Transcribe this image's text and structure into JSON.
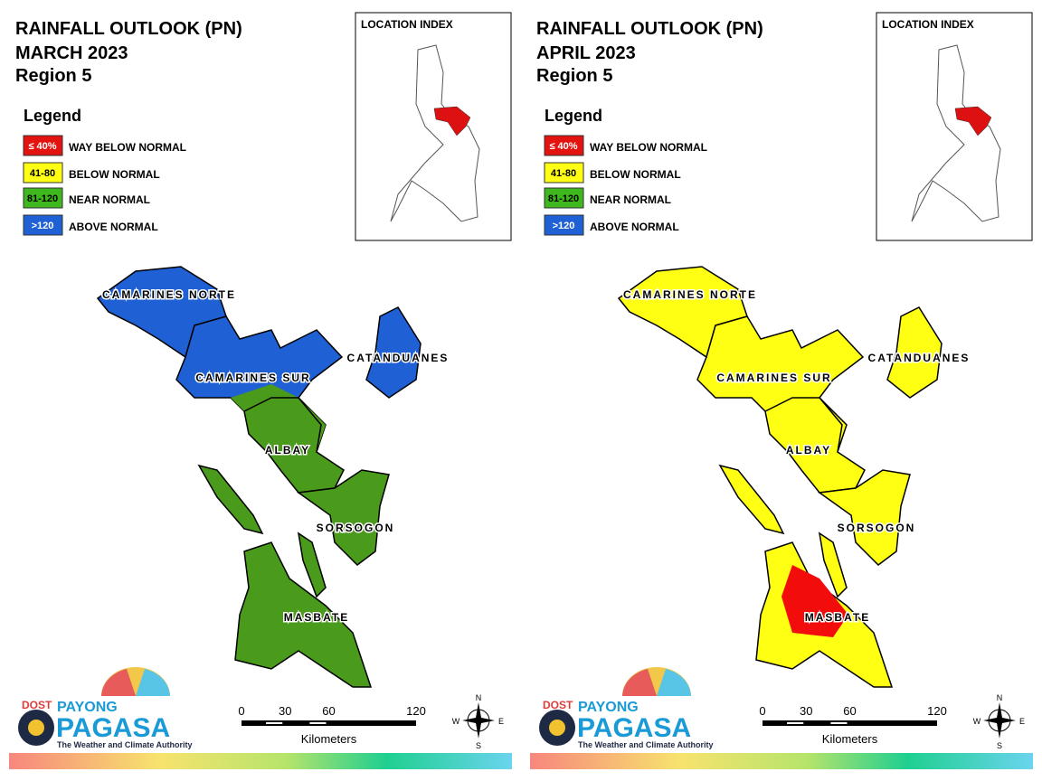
{
  "panels": [
    {
      "title": "RAINFALL OUTLOOK (PN)",
      "month": "MARCH 2023",
      "region": "Region 5",
      "location_index": "LOCATION INDEX",
      "legend": {
        "title": "Legend",
        "items": [
          {
            "range": "≤ 40%",
            "label": "WAY BELOW NORMAL",
            "color": "#e3140f"
          },
          {
            "range": "41-80",
            "label": "BELOW NORMAL",
            "color": "#ffff14"
          },
          {
            "range": "81-120",
            "label": "NEAR NORMAL",
            "color": "#3fb71e"
          },
          {
            "range": ">120",
            "label": "ABOVE NORMAL",
            "color": "#1f60d4"
          }
        ]
      },
      "provinces": [
        {
          "name": "CAMARINES NORTE",
          "color": "#1f60d4"
        },
        {
          "name": "CAMARINES SUR",
          "color": "#1f60d4",
          "accent": "#4a9a1c"
        },
        {
          "name": "CATANDUANES",
          "color": "#1f60d4"
        },
        {
          "name": "ALBAY",
          "color": "#4a9a1c"
        },
        {
          "name": "SORSOGON",
          "color": "#4a9a1c"
        },
        {
          "name": "MASBATE",
          "color": "#4a9a1c"
        }
      ],
      "scale": {
        "ticks": [
          0,
          30,
          60,
          120
        ],
        "unit": "Kilometers"
      }
    },
    {
      "title": "RAINFALL OUTLOOK (PN)",
      "month": "APRIL 2023",
      "region": "Region 5",
      "location_index": "LOCATION INDEX",
      "legend": {
        "title": "Legend",
        "items": [
          {
            "range": "≤ 40%",
            "label": "WAY BELOW NORMAL",
            "color": "#e3140f"
          },
          {
            "range": "41-80",
            "label": "BELOW NORMAL",
            "color": "#ffff14"
          },
          {
            "range": "81-120",
            "label": "NEAR NORMAL",
            "color": "#3fb71e"
          },
          {
            "range": ">120",
            "label": "ABOVE NORMAL",
            "color": "#1f60d4"
          }
        ]
      },
      "provinces": [
        {
          "name": "CAMARINES NORTE",
          "color": "#ffff14"
        },
        {
          "name": "CAMARINES SUR",
          "color": "#ffff14"
        },
        {
          "name": "CATANDUANES",
          "color": "#ffff14"
        },
        {
          "name": "ALBAY",
          "color": "#ffff14"
        },
        {
          "name": "SORSOGON",
          "color": "#ffff14"
        },
        {
          "name": "MASBATE",
          "color": "#ffff14",
          "accent": "#f20c0c"
        }
      ],
      "scale": {
        "ticks": [
          0,
          30,
          60,
          120
        ],
        "unit": "Kilometers"
      }
    }
  ],
  "logo": {
    "agency": "DOST",
    "brand_top": "PAYONG",
    "brand": "PAGASA",
    "tagline": "The Weather and Climate Authority"
  },
  "compass": {
    "n": "N",
    "e": "E",
    "s": "S",
    "w": "W"
  }
}
